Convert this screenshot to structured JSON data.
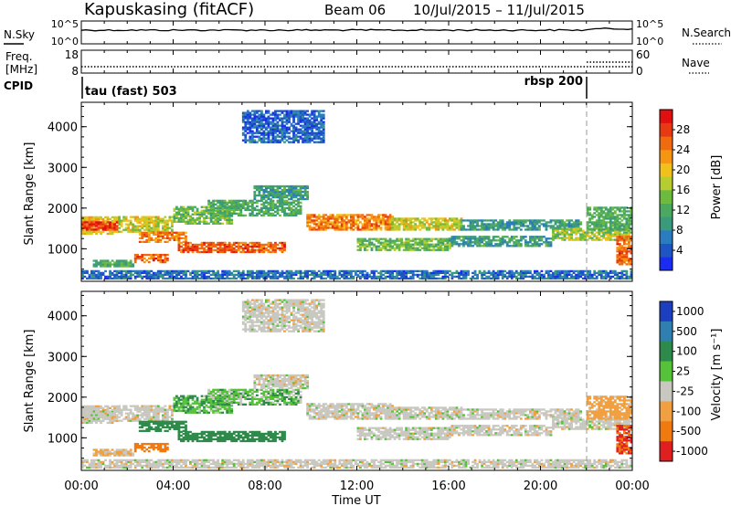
{
  "header": {
    "station": "Kapuskasing (fitACF)",
    "beam": "Beam 06",
    "date_range": "10/Jul/2015 – 11/Jul/2015"
  },
  "noise_panel": {
    "left_label": "N.Sky",
    "right_label": "N.Search",
    "left_top_tick": "10^5",
    "left_bottom_tick": "10^0",
    "right_top_tick": "10^5",
    "right_bottom_tick": "10^0"
  },
  "freq_panel": {
    "left_label_1": "Freq.",
    "left_label_2": "[MHz]",
    "left_top_tick": "18",
    "left_bottom_tick": "8",
    "right_label": "Nave",
    "right_top_tick": "60",
    "right_bottom_tick": "0"
  },
  "cpid_panel": {
    "label": "CPID",
    "mode_1": "tau (fast) 503",
    "mode_2": "rbsp 200"
  },
  "time_axis": {
    "xlabel": "Time UT",
    "ticks": [
      "00:00",
      "04:00",
      "08:00",
      "12:00",
      "16:00",
      "20:00",
      "00:00"
    ]
  },
  "power_panel": {
    "ylabel": "Slant Range [km]",
    "yticks": [
      "1000",
      "2000",
      "3000",
      "4000"
    ],
    "colorbar_label": "Power [dB]",
    "colorbar_ticks": [
      "4",
      "8",
      "12",
      "16",
      "20",
      "24",
      "28"
    ]
  },
  "velocity_panel": {
    "ylabel": "Slant Range [km]",
    "yticks": [
      "1000",
      "2000",
      "3000",
      "4000"
    ],
    "colorbar_label": "Velocity [m s⁻¹]",
    "colorbar_ticks": [
      "1000",
      "500",
      "100",
      "25",
      "-25",
      "-100",
      "-500",
      "-1000"
    ]
  },
  "chart_data": {
    "type": "heatmap",
    "x_unit": "hours UT",
    "y_unit": "km",
    "x_range": [
      0,
      24
    ],
    "y_range": [
      200,
      4600
    ],
    "x_ticks": [
      0,
      4,
      8,
      12,
      16,
      20,
      24
    ],
    "y_ticks": [
      1000,
      2000,
      3000,
      4000
    ],
    "mode_change_hour": 22,
    "power_colorscale": {
      "min": 0,
      "max": 32,
      "colors": [
        "#1a2cf0",
        "#1f55c2",
        "#2a7cbf",
        "#3c9a7c",
        "#4aa860",
        "#6dbb3e",
        "#b7cc2e",
        "#f0c11a",
        "#f69512",
        "#f06a10",
        "#e83a12",
        "#e01010"
      ]
    },
    "velocity_colorscale": {
      "levels": [
        1000,
        500,
        100,
        25,
        -25,
        -100,
        -500,
        -1000
      ],
      "colors": [
        "#1c3fbf",
        "#2f7fb0",
        "#2e8a4a",
        "#56c23a",
        "#c8c8c0",
        "#f0a040",
        "#f07a10",
        "#e02020"
      ]
    },
    "echo_bands": [
      {
        "t0": 0.0,
        "t1": 1.6,
        "r0": 1350,
        "r1": 1800,
        "power": 20,
        "velocity": 0
      },
      {
        "t0": 0.0,
        "t1": 1.6,
        "r0": 1450,
        "r1": 1650,
        "power": 28,
        "velocity": 0
      },
      {
        "t0": 1.6,
        "t1": 4.0,
        "r0": 1400,
        "r1": 1800,
        "power": 18,
        "velocity": 0
      },
      {
        "t0": 4.0,
        "t1": 6.5,
        "r0": 1600,
        "r1": 2050,
        "power": 14,
        "velocity": 50
      },
      {
        "t0": 2.5,
        "t1": 4.5,
        "r0": 1150,
        "r1": 1400,
        "power": 24,
        "velocity": 100
      },
      {
        "t0": 4.2,
        "t1": 6.2,
        "r0": 900,
        "r1": 1150,
        "power": 26,
        "velocity": 100
      },
      {
        "t0": 6.2,
        "t1": 8.8,
        "r0": 900,
        "r1": 1150,
        "power": 26,
        "velocity": 100
      },
      {
        "t0": 2.3,
        "t1": 3.8,
        "r0": 650,
        "r1": 850,
        "power": 26,
        "velocity": -150
      },
      {
        "t0": 0.5,
        "t1": 2.3,
        "r0": 550,
        "r1": 700,
        "power": 12,
        "velocity": -25
      },
      {
        "t0": 5.5,
        "t1": 9.5,
        "r0": 1800,
        "r1": 2200,
        "power": 12,
        "velocity": 40
      },
      {
        "t0": 7.5,
        "t1": 9.8,
        "r0": 2200,
        "r1": 2550,
        "power": 10,
        "velocity": 0
      },
      {
        "t0": 9.8,
        "t1": 13.5,
        "r0": 1450,
        "r1": 1850,
        "power": 24,
        "velocity": 0
      },
      {
        "t0": 13.5,
        "t1": 16.5,
        "r0": 1450,
        "r1": 1750,
        "power": 18,
        "velocity": 0
      },
      {
        "t0": 16.5,
        "t1": 21.8,
        "r0": 1450,
        "r1": 1700,
        "power": 10,
        "velocity": 0
      },
      {
        "t0": 12.0,
        "t1": 16.0,
        "r0": 950,
        "r1": 1250,
        "power": 14,
        "velocity": 0
      },
      {
        "t0": 16.0,
        "t1": 20.5,
        "r0": 1050,
        "r1": 1300,
        "power": 10,
        "velocity": 0
      },
      {
        "t0": 20.5,
        "t1": 24.0,
        "r0": 1200,
        "r1": 1500,
        "power": 16,
        "velocity": 0
      },
      {
        "t0": 22.0,
        "t1": 24.0,
        "r0": 1450,
        "r1": 2000,
        "power": 12,
        "velocity": -50
      },
      {
        "t0": 23.3,
        "t1": 24.0,
        "r0": 600,
        "r1": 1300,
        "power": 26,
        "velocity": -500
      },
      {
        "t0": 0.0,
        "t1": 24.0,
        "r0": 250,
        "r1": 450,
        "power": 6,
        "velocity": 0
      },
      {
        "t0": 7.0,
        "t1": 10.5,
        "r0": 3600,
        "r1": 4400,
        "power": 5,
        "velocity": 0
      }
    ]
  }
}
